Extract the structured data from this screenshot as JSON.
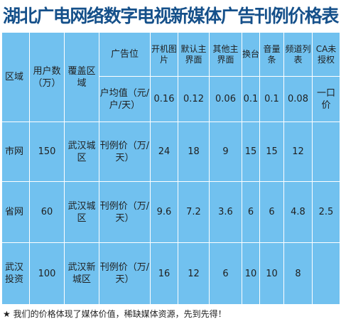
{
  "title": "湖北广电网络数字电视新媒体广告刊例价格表",
  "header": {
    "region": "区域",
    "users": "用户数（万）",
    "coverage": "覆盖区域",
    "adslot": "广告位",
    "unit_value": "户均值（元/户/天）",
    "cols": [
      "开机图片",
      "默认主界面",
      "其他主界面",
      "换台",
      "音量条",
      "频道列表",
      "CA未授权"
    ],
    "unit_values": [
      "0.16",
      "0.12",
      "0.06",
      "0.1",
      "0.1",
      "0.08",
      "一口价"
    ]
  },
  "rows": [
    {
      "region": "市网",
      "users": "150",
      "coverage": "武汉城区",
      "label": "刊例价（万/天）",
      "values": [
        "24",
        "18",
        "9",
        "15",
        "15",
        "12",
        ""
      ]
    },
    {
      "region": "省网",
      "users": "60",
      "coverage": "武汉城区",
      "label": "刊例价（万/天）",
      "values": [
        "9.6",
        "7.2",
        "3.6",
        "6",
        "6",
        "4.8",
        "2.5"
      ]
    },
    {
      "region": "武汉投资",
      "users": "100",
      "coverage": "武汉新城区",
      "label": "刊例价（万/天）",
      "values": [
        "16",
        "12",
        "6",
        "10",
        "10",
        "8",
        ""
      ]
    }
  ],
  "footer": "★ 我们的价格体现了媒体价值，稀缺媒体资源，先到先得！",
  "colors": {
    "cell_bg": "#71c1ef",
    "title": "#15508a"
  }
}
